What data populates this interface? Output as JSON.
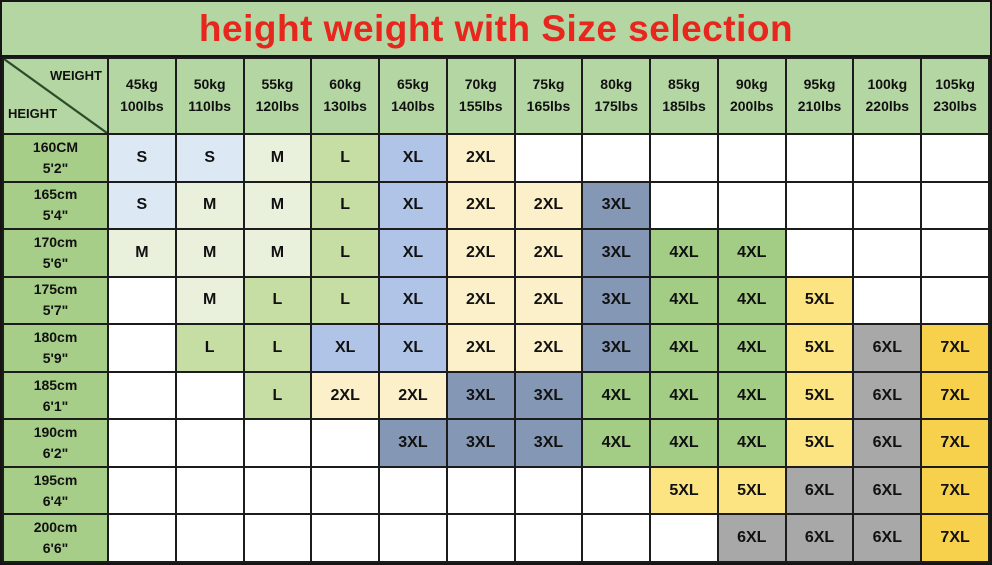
{
  "title": "height weight with Size selection",
  "corner": {
    "top": "WEIGHT",
    "bottom": "HEIGHT"
  },
  "chart_data": {
    "type": "table",
    "title": "height weight with Size selection",
    "columns": [
      {
        "kg": "45kg",
        "lbs": "100lbs"
      },
      {
        "kg": "50kg",
        "lbs": "110lbs"
      },
      {
        "kg": "55kg",
        "lbs": "120lbs"
      },
      {
        "kg": "60kg",
        "lbs": "130lbs"
      },
      {
        "kg": "65kg",
        "lbs": "140lbs"
      },
      {
        "kg": "70kg",
        "lbs": "155lbs"
      },
      {
        "kg": "75kg",
        "lbs": "165lbs"
      },
      {
        "kg": "80kg",
        "lbs": "175lbs"
      },
      {
        "kg": "85kg",
        "lbs": "185lbs"
      },
      {
        "kg": "90kg",
        "lbs": "200lbs"
      },
      {
        "kg": "95kg",
        "lbs": "210lbs"
      },
      {
        "kg": "100kg",
        "lbs": "220lbs"
      },
      {
        "kg": "105kg",
        "lbs": "230lbs"
      }
    ],
    "rows": [
      {
        "cm": "160CM",
        "ft": "5'2\"",
        "sizes": [
          "S",
          "S",
          "M",
          "L",
          "XL",
          "2XL",
          "",
          "",
          "",
          "",
          "",
          "",
          ""
        ]
      },
      {
        "cm": "165cm",
        "ft": "5'4\"",
        "sizes": [
          "S",
          "M",
          "M",
          "L",
          "XL",
          "2XL",
          "2XL",
          "3XL",
          "",
          "",
          "",
          "",
          ""
        ]
      },
      {
        "cm": "170cm",
        "ft": "5'6\"",
        "sizes": [
          "M",
          "M",
          "M",
          "L",
          "XL",
          "2XL",
          "2XL",
          "3XL",
          "4XL",
          "4XL",
          "",
          "",
          ""
        ]
      },
      {
        "cm": "175cm",
        "ft": "5'7\"",
        "sizes": [
          "",
          "M",
          "L",
          "L",
          "XL",
          "2XL",
          "2XL",
          "3XL",
          "4XL",
          "4XL",
          "5XL",
          "",
          ""
        ]
      },
      {
        "cm": "180cm",
        "ft": "5'9\"",
        "sizes": [
          "",
          "L",
          "L",
          "XL",
          "XL",
          "2XL",
          "2XL",
          "3XL",
          "4XL",
          "4XL",
          "5XL",
          "6XL",
          "7XL"
        ]
      },
      {
        "cm": "185cm",
        "ft": "6'1\"",
        "sizes": [
          "",
          "",
          "L",
          "2XL",
          "2XL",
          "3XL",
          "3XL",
          "4XL",
          "4XL",
          "4XL",
          "5XL",
          "6XL",
          "7XL"
        ]
      },
      {
        "cm": "190cm",
        "ft": "6'2\"",
        "sizes": [
          "",
          "",
          "",
          "",
          "3XL",
          "3XL",
          "3XL",
          "4XL",
          "4XL",
          "4XL",
          "5XL",
          "6XL",
          "7XL"
        ]
      },
      {
        "cm": "195cm",
        "ft": "6'4\"",
        "sizes": [
          "",
          "",
          "",
          "",
          "",
          "",
          "",
          "",
          "5XL",
          "5XL",
          "6XL",
          "6XL",
          "7XL"
        ]
      },
      {
        "cm": "200cm",
        "ft": "6'6\"",
        "sizes": [
          "",
          "",
          "",
          "",
          "",
          "",
          "",
          "",
          "",
          "6XL",
          "6XL",
          "6XL",
          "7XL"
        ]
      }
    ]
  },
  "colors": {
    "title_text": "#e7261d",
    "band_bg": "#b4d6a2",
    "height_col_bg": "#a6ce89",
    "grid_line": "#1c1c1c",
    "diagonal_line": "#2a4d2a",
    "empty_cell": "#ffffff",
    "size_fill": {
      "S": "#dce8f4",
      "M": "#e9f0dc",
      "L": "#c6dda4",
      "XL": "#afc4e6",
      "2XL": "#fcf0ca",
      "3XL": "#8497b5",
      "4XL": "#a3cc84",
      "5XL": "#fce483",
      "6XL": "#a8a8a8",
      "7XL": "#f7d14c"
    }
  }
}
